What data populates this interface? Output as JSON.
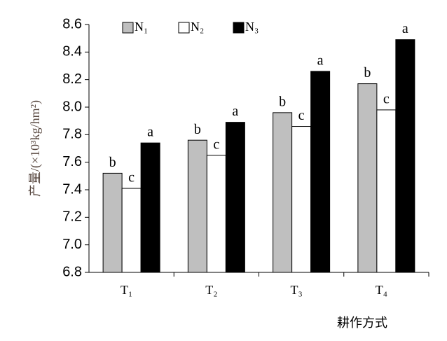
{
  "chart_data": {
    "type": "bar",
    "y_label": "产量/(×10³kg/hm²)",
    "x_label": "耕作方式",
    "categories": [
      "T₁",
      "T₂",
      "T₃",
      "T₄"
    ],
    "series": [
      {
        "name": "N₁",
        "color": "#bfbfbf",
        "values": [
          7.52,
          7.76,
          7.96,
          8.17
        ],
        "letters": [
          "b",
          "b",
          "b",
          "b"
        ]
      },
      {
        "name": "N₂",
        "color": "#ffffff",
        "values": [
          7.41,
          7.65,
          7.86,
          7.98
        ],
        "letters": [
          "c",
          "c",
          "c",
          "c"
        ]
      },
      {
        "name": "N₃",
        "color": "#000000",
        "values": [
          7.74,
          7.89,
          8.26,
          8.49
        ],
        "letters": [
          "a",
          "a",
          "a",
          "a"
        ]
      }
    ],
    "ylim": [
      6.8,
      8.6
    ],
    "yticks": [
      6.8,
      {
        "value": 7,
        "label": "7.0"
      },
      7.2,
      7.4,
      7.6,
      7.8,
      {
        "value": 8,
        "label": "8.0"
      },
      8.2,
      8.4,
      8.6
    ],
    "legend": "top"
  }
}
